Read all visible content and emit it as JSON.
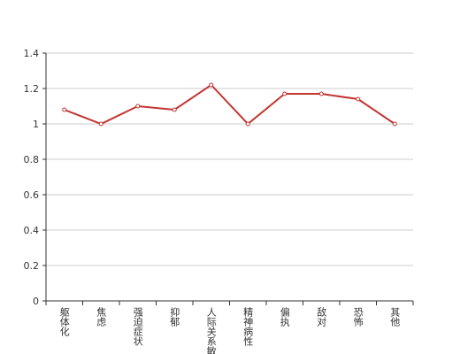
{
  "chart_data": {
    "type": "line",
    "categories": [
      "躯体化",
      "焦虑",
      "强迫症状",
      "抑郁",
      "人际关系敏感",
      "精神病性",
      "偏执",
      "敌对",
      "恐怖",
      "其他"
    ],
    "values": [
      1.08,
      1.0,
      1.1,
      1.08,
      1.22,
      1.0,
      1.17,
      1.17,
      1.14,
      1.0
    ],
    "color": "#c23531",
    "ylim": [
      0,
      1.4
    ],
    "yticks": [
      0,
      0.2,
      0.4,
      0.6,
      0.8,
      1,
      1.2,
      1.4
    ],
    "grid": true
  }
}
